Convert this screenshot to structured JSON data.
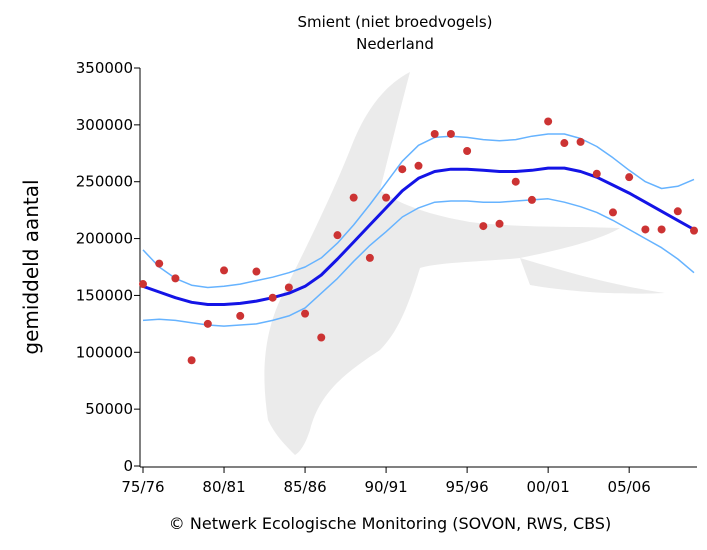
{
  "chart_data": {
    "type": "line",
    "title": "Smient (niet broedvogels)",
    "subtitle": "Nederland",
    "y_label": "gemiddeld aantal",
    "footer": "© Netwerk Ecologische Monitoring (SOVON, RWS, CBS)",
    "categories": [
      "75/76",
      null,
      null,
      null,
      null,
      "80/81",
      null,
      null,
      null,
      null,
      "85/86",
      null,
      null,
      null,
      null,
      "90/91",
      null,
      null,
      null,
      null,
      "95/96",
      null,
      null,
      null,
      null,
      "00/01",
      null,
      null,
      null,
      null,
      "05/06",
      null,
      null,
      null,
      null
    ],
    "ylim": [
      0,
      350000
    ],
    "yticks": [
      0,
      50000,
      100000,
      150000,
      200000,
      250000,
      300000,
      350000
    ],
    "series": [
      {
        "kind": "line",
        "color": "#66b3ff",
        "width": 1.5,
        "values": [
          190000,
          175000,
          165000,
          159000,
          157000,
          158000,
          160000,
          163000,
          166000,
          170000,
          175000,
          183000,
          196000,
          212000,
          230000,
          249000,
          268000,
          282000,
          289000,
          290000,
          289000,
          287000,
          286000,
          287000,
          290000,
          292000,
          292000,
          288000,
          281000,
          271000,
          260000,
          250000,
          244000,
          246000,
          252000
        ]
      },
      {
        "kind": "line",
        "color": "#66b3ff",
        "width": 1.5,
        "values": [
          128000,
          129000,
          128000,
          126000,
          124000,
          123000,
          124000,
          125000,
          128000,
          132000,
          139000,
          152000,
          165000,
          180000,
          194000,
          206000,
          219000,
          227000,
          232000,
          233000,
          233000,
          232000,
          232000,
          233000,
          234000,
          235000,
          232000,
          228000,
          223000,
          216000,
          208000,
          200000,
          192000,
          182000,
          170000
        ]
      },
      {
        "kind": "line",
        "color": "#1414e6",
        "width": 3,
        "values": [
          158000,
          153000,
          148000,
          144000,
          142000,
          142000,
          143000,
          145000,
          148000,
          152000,
          158000,
          168000,
          182000,
          197000,
          212000,
          227000,
          242000,
          253000,
          259000,
          261000,
          261000,
          260000,
          259000,
          259000,
          260000,
          262000,
          262000,
          259000,
          254000,
          247000,
          240000,
          232000,
          224000,
          216000,
          208000
        ]
      },
      {
        "kind": "points",
        "color": "#cc3333",
        "width": 4,
        "values": [
          160000,
          178000,
          165000,
          93000,
          125000,
          172000,
          132000,
          171000,
          148000,
          157000,
          134000,
          113000,
          203000,
          236000,
          183000,
          236000,
          261000,
          264000,
          292000,
          292000,
          277000,
          211000,
          213000,
          250000,
          234000,
          303000,
          284000,
          285000,
          257000,
          223000,
          254000,
          208000,
          208000,
          224000,
          207000
        ]
      }
    ]
  }
}
